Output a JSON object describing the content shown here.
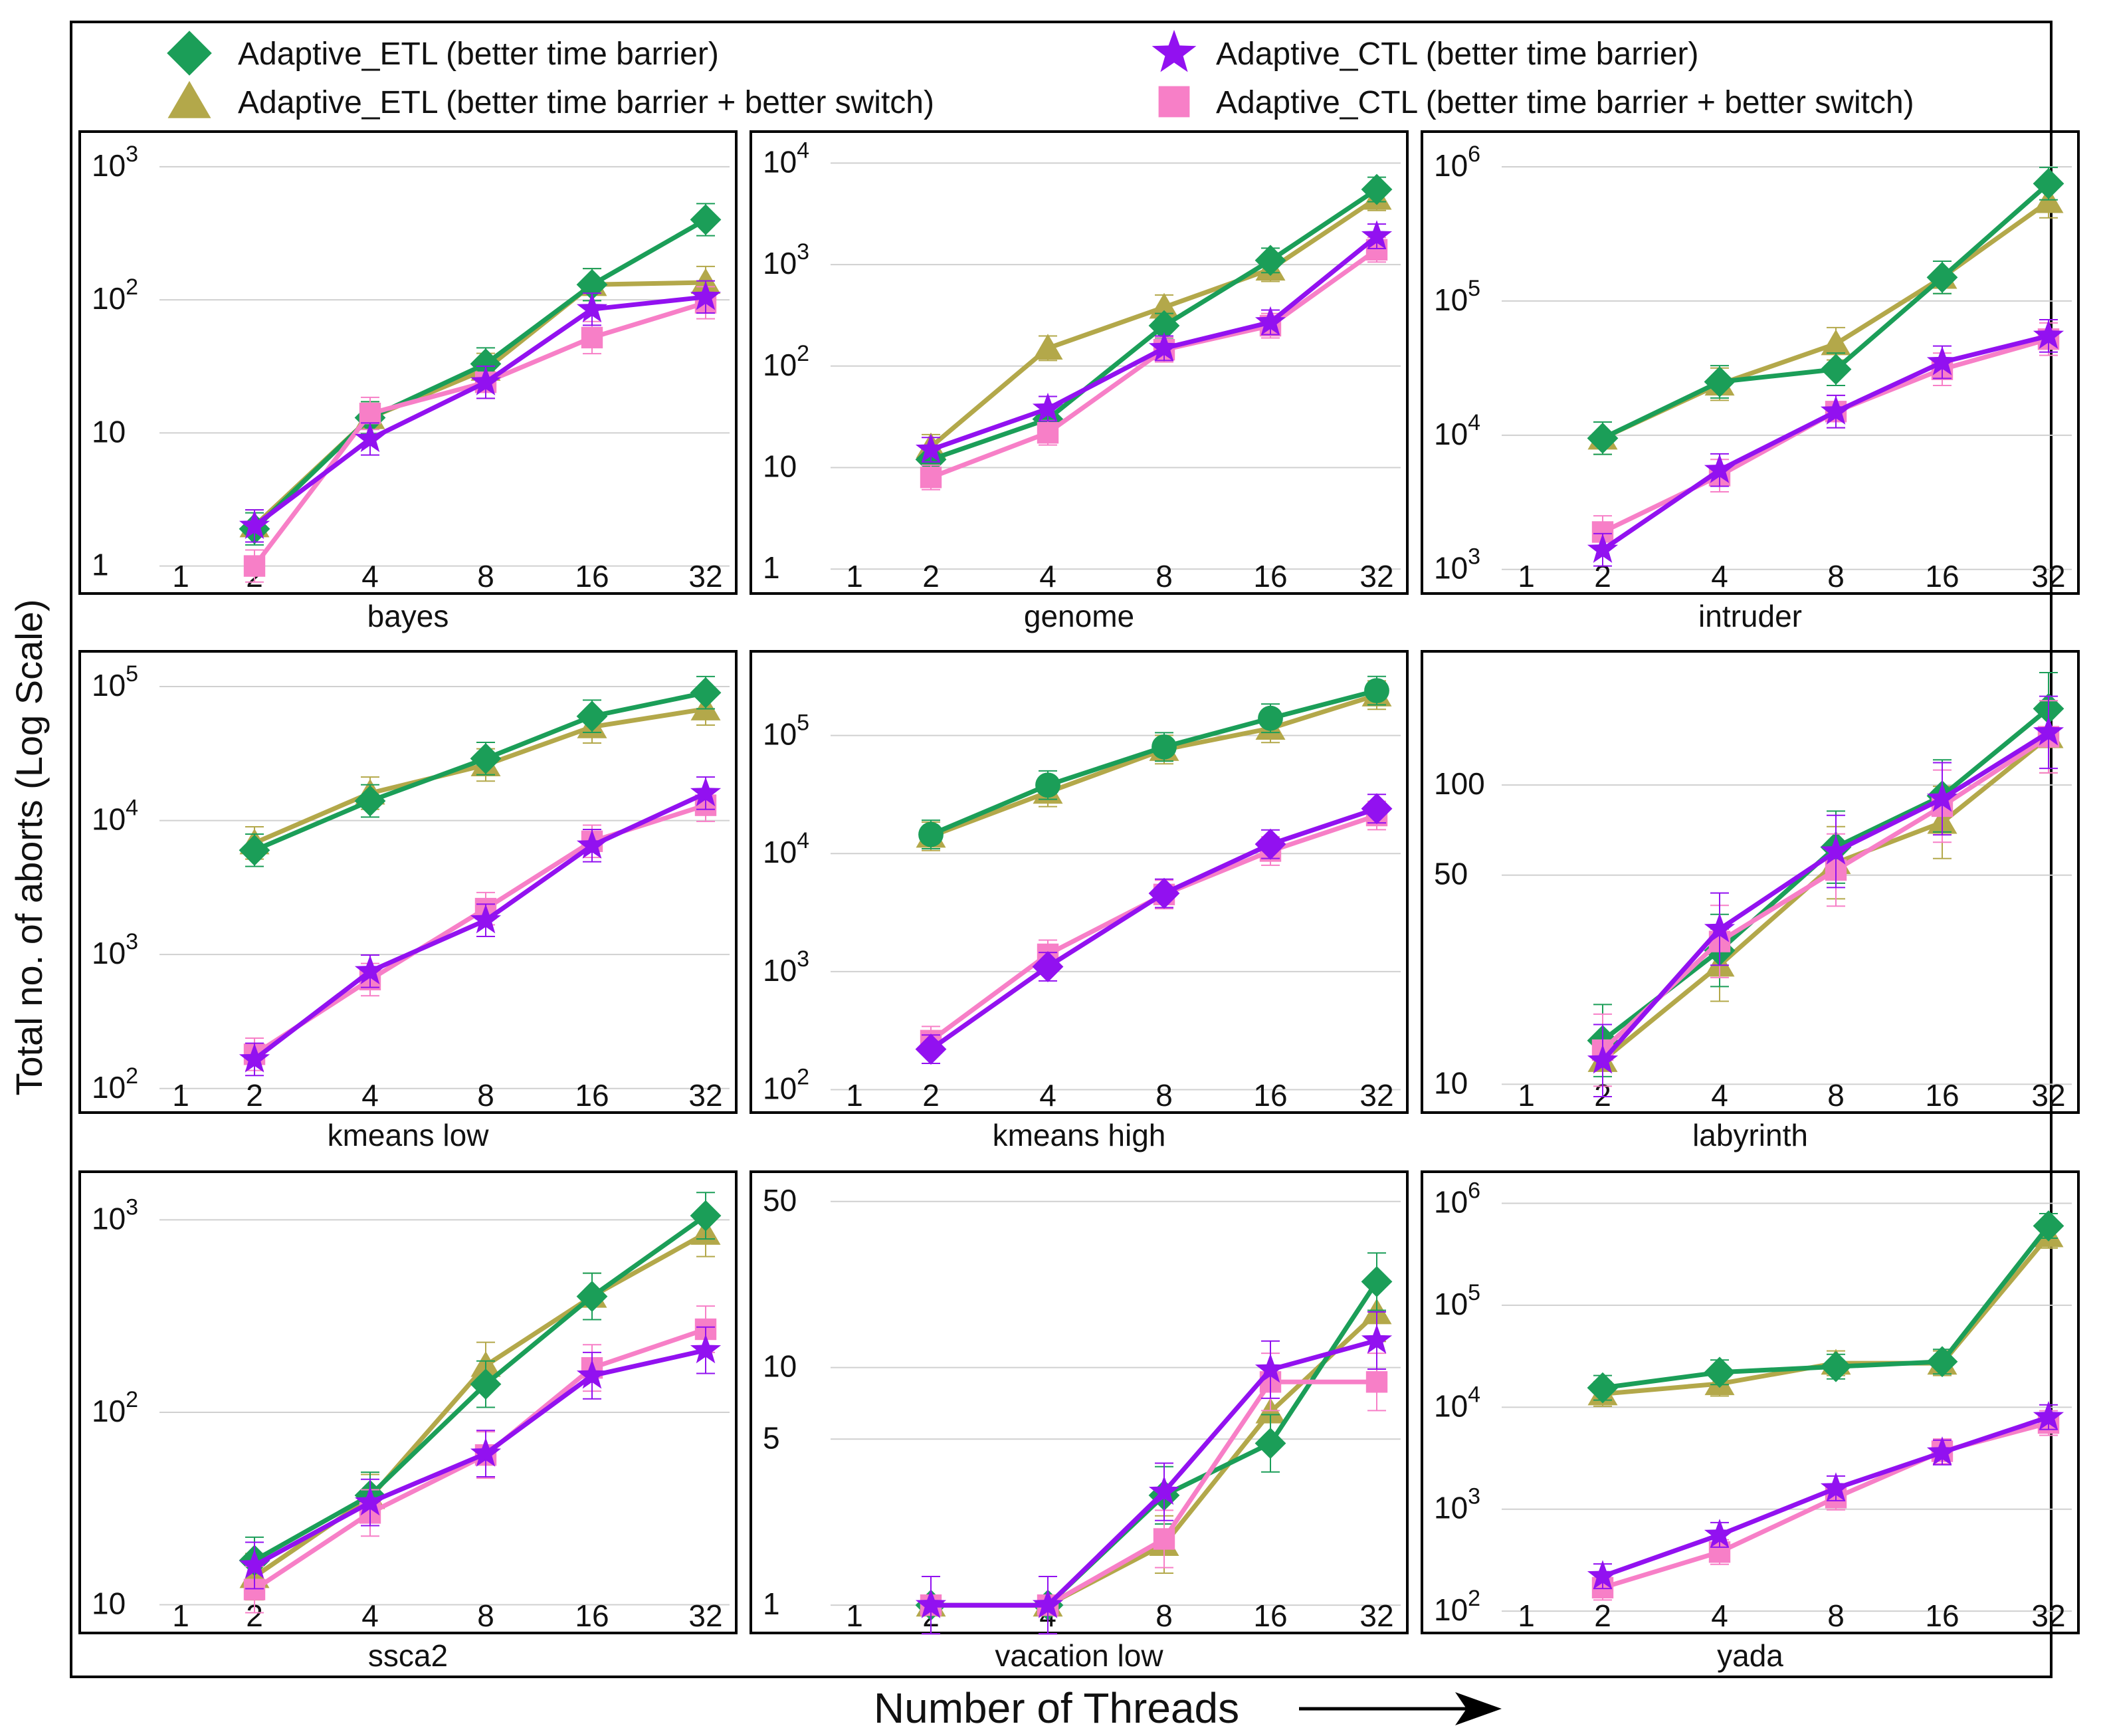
{
  "figure": {
    "ylabel": "Total no. of aborts (Log Scale)",
    "xlabel": "Number of Threads"
  },
  "legend": [
    {
      "label": "Adaptive_ETL (better time barrier)",
      "color": "#1b9e58",
      "marker": "diamond"
    },
    {
      "label": "Adaptive_ETL (better time barrier + better switch)",
      "color": "#b3a84a",
      "marker": "triangle"
    },
    {
      "label": "Adaptive_CTL (better time barrier)",
      "color": "#9211f0",
      "marker": "star"
    },
    {
      "label": "Adaptive_CTL (better time barrier + better switch)",
      "color": "#f77fc7",
      "marker": "square"
    }
  ],
  "chart_data": [
    {
      "type": "line",
      "title": "bayes",
      "xlabel": "Number of Threads",
      "ylabel": "Total no. of aborts (Log Scale)",
      "categories": [
        "1",
        "2",
        "4",
        "8",
        "16",
        "32"
      ],
      "yscale": "log",
      "ylim": [
        0.8,
        1300
      ],
      "yticks": [
        {
          "v": 1,
          "t": "1"
        },
        {
          "v": 10,
          "t": "10"
        },
        {
          "v": 100,
          "b": "10",
          "e": "2"
        },
        {
          "v": 1000,
          "b": "10",
          "e": "3"
        }
      ],
      "series": [
        {
          "name": "Adaptive_ETL (better time barrier)",
          "values": [
            null,
            1.9,
            13,
            33,
            130,
            400
          ]
        },
        {
          "name": "Adaptive_ETL (better time barrier + better switch)",
          "values": [
            null,
            2,
            13,
            30,
            130,
            135
          ]
        },
        {
          "name": "Adaptive_CTL (better time barrier)",
          "values": [
            null,
            2,
            9,
            24,
            85,
            105
          ]
        },
        {
          "name": "Adaptive_CTL (better time barrier + better switch)",
          "values": [
            null,
            1,
            14,
            24,
            52,
            95
          ]
        }
      ]
    },
    {
      "type": "line",
      "title": "genome",
      "xlabel": "Number of Threads",
      "ylabel": "Total no. of aborts (Log Scale)",
      "categories": [
        "1",
        "2",
        "4",
        "8",
        "16",
        "32"
      ],
      "yscale": "log",
      "ylim": [
        0.8,
        13000
      ],
      "yticks": [
        {
          "v": 1,
          "t": "1"
        },
        {
          "v": 10,
          "t": "10"
        },
        {
          "v": 100,
          "b": "10",
          "e": "2"
        },
        {
          "v": 1000,
          "b": "10",
          "e": "3"
        },
        {
          "v": 10000,
          "b": "10",
          "e": "4"
        }
      ],
      "series": [
        {
          "name": "Adaptive_ETL (better time barrier)",
          "values": [
            null,
            12,
            30,
            250,
            1100,
            5500
          ]
        },
        {
          "name": "Adaptive_ETL (better time barrier + better switch)",
          "values": [
            null,
            16,
            150,
            380,
            900,
            4500
          ]
        },
        {
          "name": "Adaptive_CTL (better time barrier)",
          "values": [
            null,
            15,
            38,
            150,
            270,
            1900
          ]
        },
        {
          "name": "Adaptive_CTL (better time barrier + better switch)",
          "values": [
            null,
            8,
            22,
            145,
            250,
            1400
          ]
        }
      ]
    },
    {
      "type": "line",
      "title": "intruder",
      "xlabel": "Number of Threads",
      "ylabel": "Total no. of aborts (Log Scale)",
      "categories": [
        "1",
        "2",
        "4",
        "8",
        "16",
        "32"
      ],
      "yscale": "log",
      "ylim": [
        850,
        1300000
      ],
      "yticks": [
        {
          "v": 1000,
          "b": "10",
          "e": "3"
        },
        {
          "v": 10000,
          "b": "10",
          "e": "4"
        },
        {
          "v": 100000,
          "b": "10",
          "e": "5"
        },
        {
          "v": 1000000,
          "b": "10",
          "e": "6"
        }
      ],
      "series": [
        {
          "name": "Adaptive_ETL (better time barrier)",
          "values": [
            null,
            9500,
            25000,
            31000,
            150000,
            750000
          ]
        },
        {
          "name": "Adaptive_ETL (better time barrier + better switch)",
          "values": [
            null,
            9500,
            24000,
            48000,
            150000,
            550000
          ]
        },
        {
          "name": "Adaptive_CTL (better time barrier)",
          "values": [
            null,
            1400,
            5500,
            15000,
            35000,
            55000
          ]
        },
        {
          "name": "Adaptive_CTL (better time barrier + better switch)",
          "values": [
            null,
            1900,
            5000,
            15000,
            31000,
            52000
          ]
        }
      ]
    },
    {
      "type": "line",
      "title": "kmeans low",
      "xlabel": "Number of Threads",
      "ylabel": "Total no. of aborts (Log Scale)",
      "categories": [
        "1",
        "2",
        "4",
        "8",
        "16",
        "32"
      ],
      "yscale": "log",
      "ylim": [
        85,
        130000
      ],
      "yticks": [
        {
          "v": 100,
          "b": "10",
          "e": "2"
        },
        {
          "v": 1000,
          "b": "10",
          "e": "3"
        },
        {
          "v": 10000,
          "b": "10",
          "e": "4"
        },
        {
          "v": 100000,
          "b": "10",
          "e": "5"
        }
      ],
      "series": [
        {
          "name": "Adaptive_ETL (better time barrier)",
          "values": [
            null,
            6000,
            14000,
            29000,
            60000,
            90000
          ]
        },
        {
          "name": "Adaptive_ETL (better time barrier + better switch)",
          "values": [
            null,
            6800,
            16000,
            26000,
            50000,
            68000
          ]
        },
        {
          "name": "Adaptive_CTL (better time barrier)",
          "values": [
            null,
            165,
            750,
            1800,
            6500,
            16000
          ]
        },
        {
          "name": "Adaptive_CTL (better time barrier + better switch)",
          "values": [
            null,
            180,
            650,
            2200,
            7000,
            13000
          ]
        }
      ]
    },
    {
      "type": "line",
      "title": "kmeans high",
      "xlabel": "Number of Threads",
      "ylabel": "Total no. of aborts (Log Scale)",
      "categories": [
        "1",
        "2",
        "4",
        "8",
        "16",
        "32"
      ],
      "yscale": "log",
      "ylim": [
        85,
        350000
      ],
      "yticks": [
        {
          "v": 100,
          "b": "10",
          "e": "2"
        },
        {
          "v": 1000,
          "b": "10",
          "e": "3"
        },
        {
          "v": 10000,
          "b": "10",
          "e": "4"
        },
        {
          "v": 100000,
          "b": "10",
          "e": "5"
        }
      ],
      "series": [
        {
          "name": "Adaptive_ETL (better time barrier)",
          "values": [
            null,
            14500,
            38000,
            80000,
            140000,
            240000
          ]
        },
        {
          "name": "Adaptive_ETL (better time barrier + better switch)",
          "values": [
            null,
            14000,
            33000,
            76000,
            115000,
            220000
          ]
        },
        {
          "name": "Adaptive_CTL (better time barrier)",
          "values": [
            null,
            220,
            1100,
            4600,
            12000,
            24000
          ]
        },
        {
          "name": "Adaptive_CTL (better time barrier + better switch)",
          "values": [
            null,
            260,
            1400,
            4500,
            10500,
            21000
          ]
        }
      ]
    },
    {
      "type": "line",
      "title": "labyrinth",
      "xlabel": "Number of Threads",
      "ylabel": "Total no. of aborts (Log Scale)",
      "categories": [
        "1",
        "2",
        "4",
        "8",
        "16",
        "32"
      ],
      "yscale": "log",
      "ylim": [
        9,
        240
      ],
      "yticks": [
        {
          "v": 10,
          "t": "10"
        },
        {
          "v": 50,
          "t": "50"
        },
        {
          "v": 100,
          "t": "100"
        }
      ],
      "series": [
        {
          "name": "Adaptive_ETL (better time barrier)",
          "values": [
            null,
            14,
            28,
            62,
            92,
            180
          ]
        },
        {
          "name": "Adaptive_ETL (better time barrier + better switch)",
          "values": [
            null,
            12,
            25,
            55,
            75,
            145
          ]
        },
        {
          "name": "Adaptive_CTL (better time barrier)",
          "values": [
            null,
            12,
            33,
            60,
            90,
            150
          ]
        },
        {
          "name": "Adaptive_CTL (better time barrier + better switch)",
          "values": [
            null,
            13,
            30,
            52,
            85,
            145
          ]
        }
      ]
    },
    {
      "type": "line",
      "title": "ssca2",
      "xlabel": "Number of Threads",
      "ylabel": "Total no. of aborts (Log Scale)",
      "categories": [
        "1",
        "2",
        "4",
        "8",
        "16",
        "32"
      ],
      "yscale": "log",
      "ylim": [
        8.5,
        1400
      ],
      "yticks": [
        {
          "v": 10,
          "t": "10"
        },
        {
          "v": 100,
          "b": "10",
          "e": "2"
        },
        {
          "v": 1000,
          "b": "10",
          "e": "3"
        }
      ],
      "series": [
        {
          "name": "Adaptive_ETL (better time barrier)",
          "values": [
            null,
            17,
            37,
            140,
            400,
            1050
          ]
        },
        {
          "name": "Adaptive_ETL (better time barrier + better switch)",
          "values": [
            null,
            14,
            36,
            175,
            400,
            850
          ]
        },
        {
          "name": "Adaptive_CTL (better time barrier)",
          "values": [
            null,
            16,
            34,
            61,
            155,
            210
          ]
        },
        {
          "name": "Adaptive_CTL (better time barrier + better switch)",
          "values": [
            null,
            12,
            30,
            60,
            170,
            270
          ]
        }
      ]
    },
    {
      "type": "line",
      "title": "vacation low",
      "xlabel": "Number of Threads",
      "ylabel": "Total no. of aborts (Log Scale)",
      "categories": [
        "1",
        "2",
        "4",
        "8",
        "16",
        "32"
      ],
      "yscale": "log",
      "ylim": [
        0.88,
        55
      ],
      "yticks": [
        {
          "v": 1,
          "t": "1"
        },
        {
          "v": 5,
          "t": "5"
        },
        {
          "v": 10,
          "t": "10"
        },
        {
          "v": 50,
          "t": "50"
        }
      ],
      "series": [
        {
          "name": "Adaptive_ETL (better time barrier)",
          "values": [
            null,
            1,
            1,
            2.9,
            4.8,
            23
          ]
        },
        {
          "name": "Adaptive_ETL (better time barrier + better switch)",
          "values": [
            null,
            1,
            1,
            1.8,
            6.5,
            17
          ]
        },
        {
          "name": "Adaptive_CTL (better time barrier)",
          "values": [
            null,
            1,
            1,
            3,
            9.8,
            13
          ]
        },
        {
          "name": "Adaptive_CTL (better time barrier + better switch)",
          "values": [
            null,
            1,
            1,
            1.9,
            8.7,
            8.7
          ]
        }
      ]
    },
    {
      "type": "line",
      "title": "yada",
      "xlabel": "Number of Threads",
      "ylabel": "Total no. of aborts (Log Scale)",
      "categories": [
        "1",
        "2",
        "4",
        "8",
        "16",
        "32"
      ],
      "yscale": "log",
      "ylim": [
        85,
        1300000
      ],
      "yticks": [
        {
          "v": 100,
          "b": "10",
          "e": "2"
        },
        {
          "v": 1000,
          "b": "10",
          "e": "3"
        },
        {
          "v": 10000,
          "b": "10",
          "e": "4"
        },
        {
          "v": 100000,
          "b": "10",
          "e": "5"
        },
        {
          "v": 1000000,
          "b": "10",
          "e": "6"
        }
      ],
      "series": [
        {
          "name": "Adaptive_ETL (better time barrier)",
          "values": [
            null,
            15500,
            22000,
            25000,
            28000,
            600000
          ]
        },
        {
          "name": "Adaptive_ETL (better time barrier + better switch)",
          "values": [
            null,
            13500,
            17000,
            27000,
            27000,
            480000
          ]
        },
        {
          "name": "Adaptive_CTL (better time barrier)",
          "values": [
            null,
            220,
            560,
            1600,
            3600,
            8000
          ]
        },
        {
          "name": "Adaptive_CTL (better time barrier + better switch)",
          "values": [
            null,
            170,
            380,
            1300,
            3700,
            7000
          ]
        }
      ]
    }
  ]
}
